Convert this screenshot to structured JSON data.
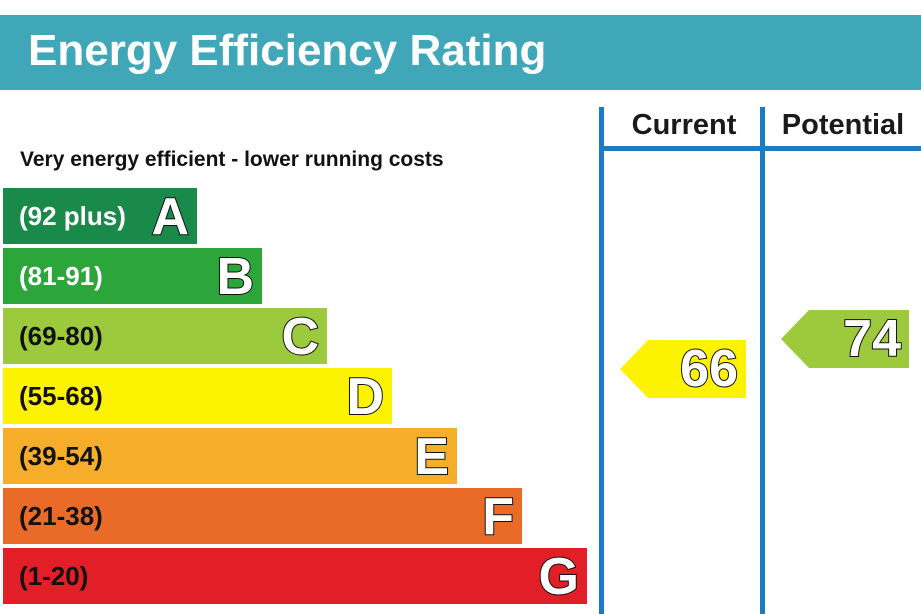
{
  "header": {
    "title": "Energy Efficiency Rating"
  },
  "columns": {
    "current": "Current",
    "potential": "Potential"
  },
  "top_label": "Very energy efficient - lower running costs",
  "chart_data": {
    "type": "bar",
    "title": "Energy Efficiency Rating",
    "bands": [
      {
        "letter": "A",
        "range": "(92 plus)",
        "color": "#1a8a4a",
        "dark_text": false
      },
      {
        "letter": "B",
        "range": "(81-91)",
        "color": "#2ca63b",
        "dark_text": false
      },
      {
        "letter": "C",
        "range": "(69-80)",
        "color": "#9cca3c",
        "dark_text": true
      },
      {
        "letter": "D",
        "range": "(55-68)",
        "color": "#fdf200",
        "dark_text": true
      },
      {
        "letter": "E",
        "range": "(39-54)",
        "color": "#f5ad2a",
        "dark_text": true
      },
      {
        "letter": "F",
        "range": "(21-38)",
        "color": "#ea6b28",
        "dark_text": true
      },
      {
        "letter": "G",
        "range": "(1-20)",
        "color": "#e21e26",
        "dark_text": true
      }
    ],
    "current": {
      "value": 66,
      "band": "D",
      "color": "#fdf200"
    },
    "potential": {
      "value": 74,
      "band": "C",
      "color": "#9cca3c"
    }
  }
}
